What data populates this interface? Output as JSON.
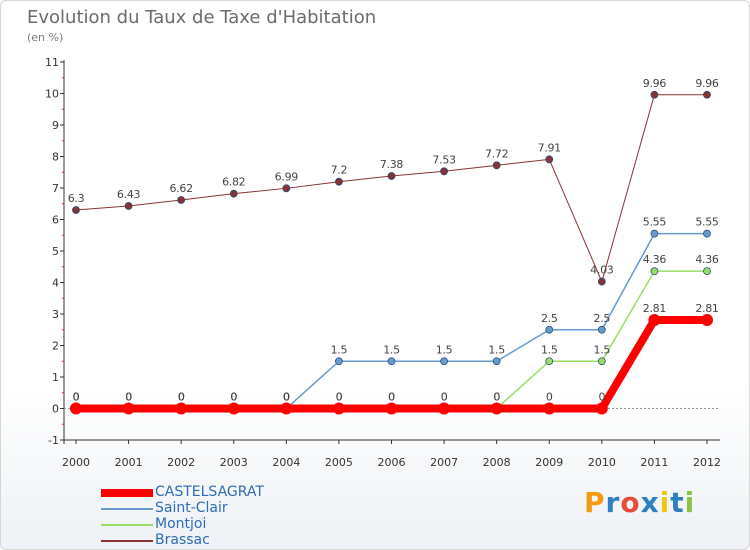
{
  "title": "Evolution du Taux de Taxe d'Habitation",
  "subtitle": "(en %)",
  "logo": {
    "text": "Proxiti",
    "colors": [
      "#f39c12",
      "#2f80c1",
      "#e74c3c",
      "#2f80c1",
      "#f1c40f",
      "#2f80c1",
      "#8bc34a"
    ]
  },
  "chart_data": {
    "type": "line",
    "title": "Evolution du Taux de Taxe d'Habitation",
    "ylabel": "(en %)",
    "x": [
      "2000",
      "2001",
      "2002",
      "2003",
      "2004",
      "2005",
      "2006",
      "2007",
      "2008",
      "2009",
      "2010",
      "2011",
      "2012"
    ],
    "ylim": [
      -1,
      11
    ],
    "yticks": [
      "-1",
      "0",
      "1",
      "2",
      "3",
      "4",
      "5",
      "6",
      "7",
      "8",
      "9",
      "10",
      "11"
    ],
    "grid": false,
    "legend_position": "bottom-left",
    "series": [
      {
        "name": "CASTELSAGRAT",
        "color": "#ff0000",
        "width": 8,
        "values": [
          0,
          0,
          0,
          0,
          0,
          0,
          0,
          0,
          0,
          0,
          0,
          2.81,
          2.81
        ],
        "labels": [
          "0",
          "0",
          "0",
          "0",
          "0",
          "0",
          "0",
          "0",
          "0",
          "0",
          "0",
          "2.81",
          "2.81"
        ]
      },
      {
        "name": "Saint-Clair",
        "color": "#6699cc",
        "width": 1.5,
        "values": [
          0,
          0,
          0,
          0,
          0,
          1.5,
          1.5,
          1.5,
          1.5,
          2.5,
          2.5,
          5.55,
          5.55
        ],
        "labels": [
          "0",
          "0",
          "0",
          "0",
          "0",
          "1.5",
          "1.5",
          "1.5",
          "1.5",
          "2.5",
          "2.5",
          "5.55",
          "5.55"
        ]
      },
      {
        "name": "Montjoi",
        "color": "#99dd66",
        "width": 1.5,
        "values": [
          0,
          0,
          0,
          0,
          0,
          0,
          0,
          0,
          0,
          1.5,
          1.5,
          4.36,
          4.36
        ],
        "labels": [
          "0",
          "0",
          "0",
          "0",
          "0",
          "0",
          "0",
          "0",
          "0",
          "1.5",
          "1.5",
          "4.36",
          "4.36"
        ]
      },
      {
        "name": "Brassac",
        "color": "#883333",
        "width": 1,
        "values": [
          6.3,
          6.43,
          6.62,
          6.82,
          6.99,
          7.2,
          7.38,
          7.53,
          7.72,
          7.91,
          4.03,
          9.96,
          9.96
        ],
        "labels": [
          "6.3",
          "6.43",
          "6.62",
          "6.82",
          "6.99",
          "7.2",
          "7.38",
          "7.53",
          "7.72",
          "7.91",
          "4.03",
          "9.96",
          "9.96"
        ]
      }
    ]
  }
}
